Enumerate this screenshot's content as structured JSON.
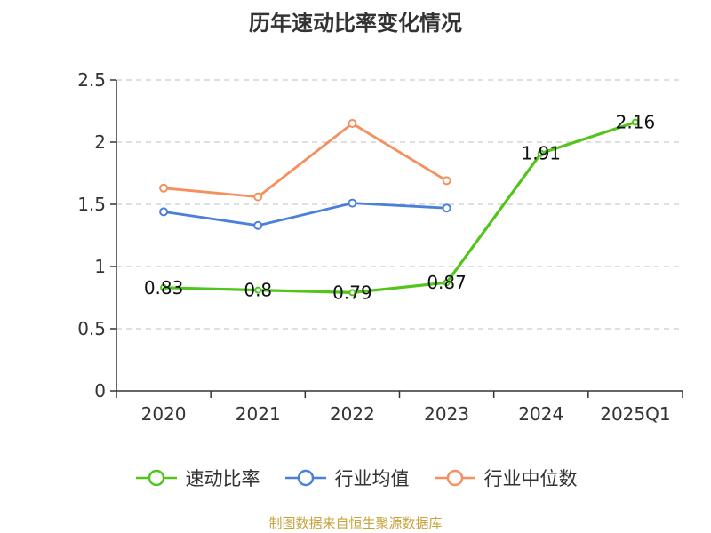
{
  "chart_data": {
    "type": "line",
    "title": "历年速动比率变化情况",
    "categories": [
      "2020",
      "2021",
      "2022",
      "2023",
      "2024",
      "2025Q1"
    ],
    "ylim": [
      0,
      2.5
    ],
    "yticks": [
      "0",
      "0.5",
      "1",
      "1.5",
      "2",
      "2.5"
    ],
    "grid": true,
    "legend_position": "bottom",
    "series": [
      {
        "name": "速动比率",
        "color": "#52c41a",
        "values": [
          0.83,
          0.81,
          0.79,
          0.87,
          1.91,
          2.16
        ],
        "labels": [
          "0.83",
          "0.8",
          "0.79",
          "0.87",
          "1.91",
          "2.16"
        ]
      },
      {
        "name": "行业均值",
        "color": "#4a7fdb",
        "values": [
          1.44,
          1.33,
          1.51,
          1.47,
          null,
          null
        ]
      },
      {
        "name": "行业中位数",
        "color": "#f58f5e",
        "values": [
          1.63,
          1.56,
          2.15,
          1.69,
          null,
          null
        ]
      }
    ]
  },
  "source": "制图数据来自恒生聚源数据库"
}
